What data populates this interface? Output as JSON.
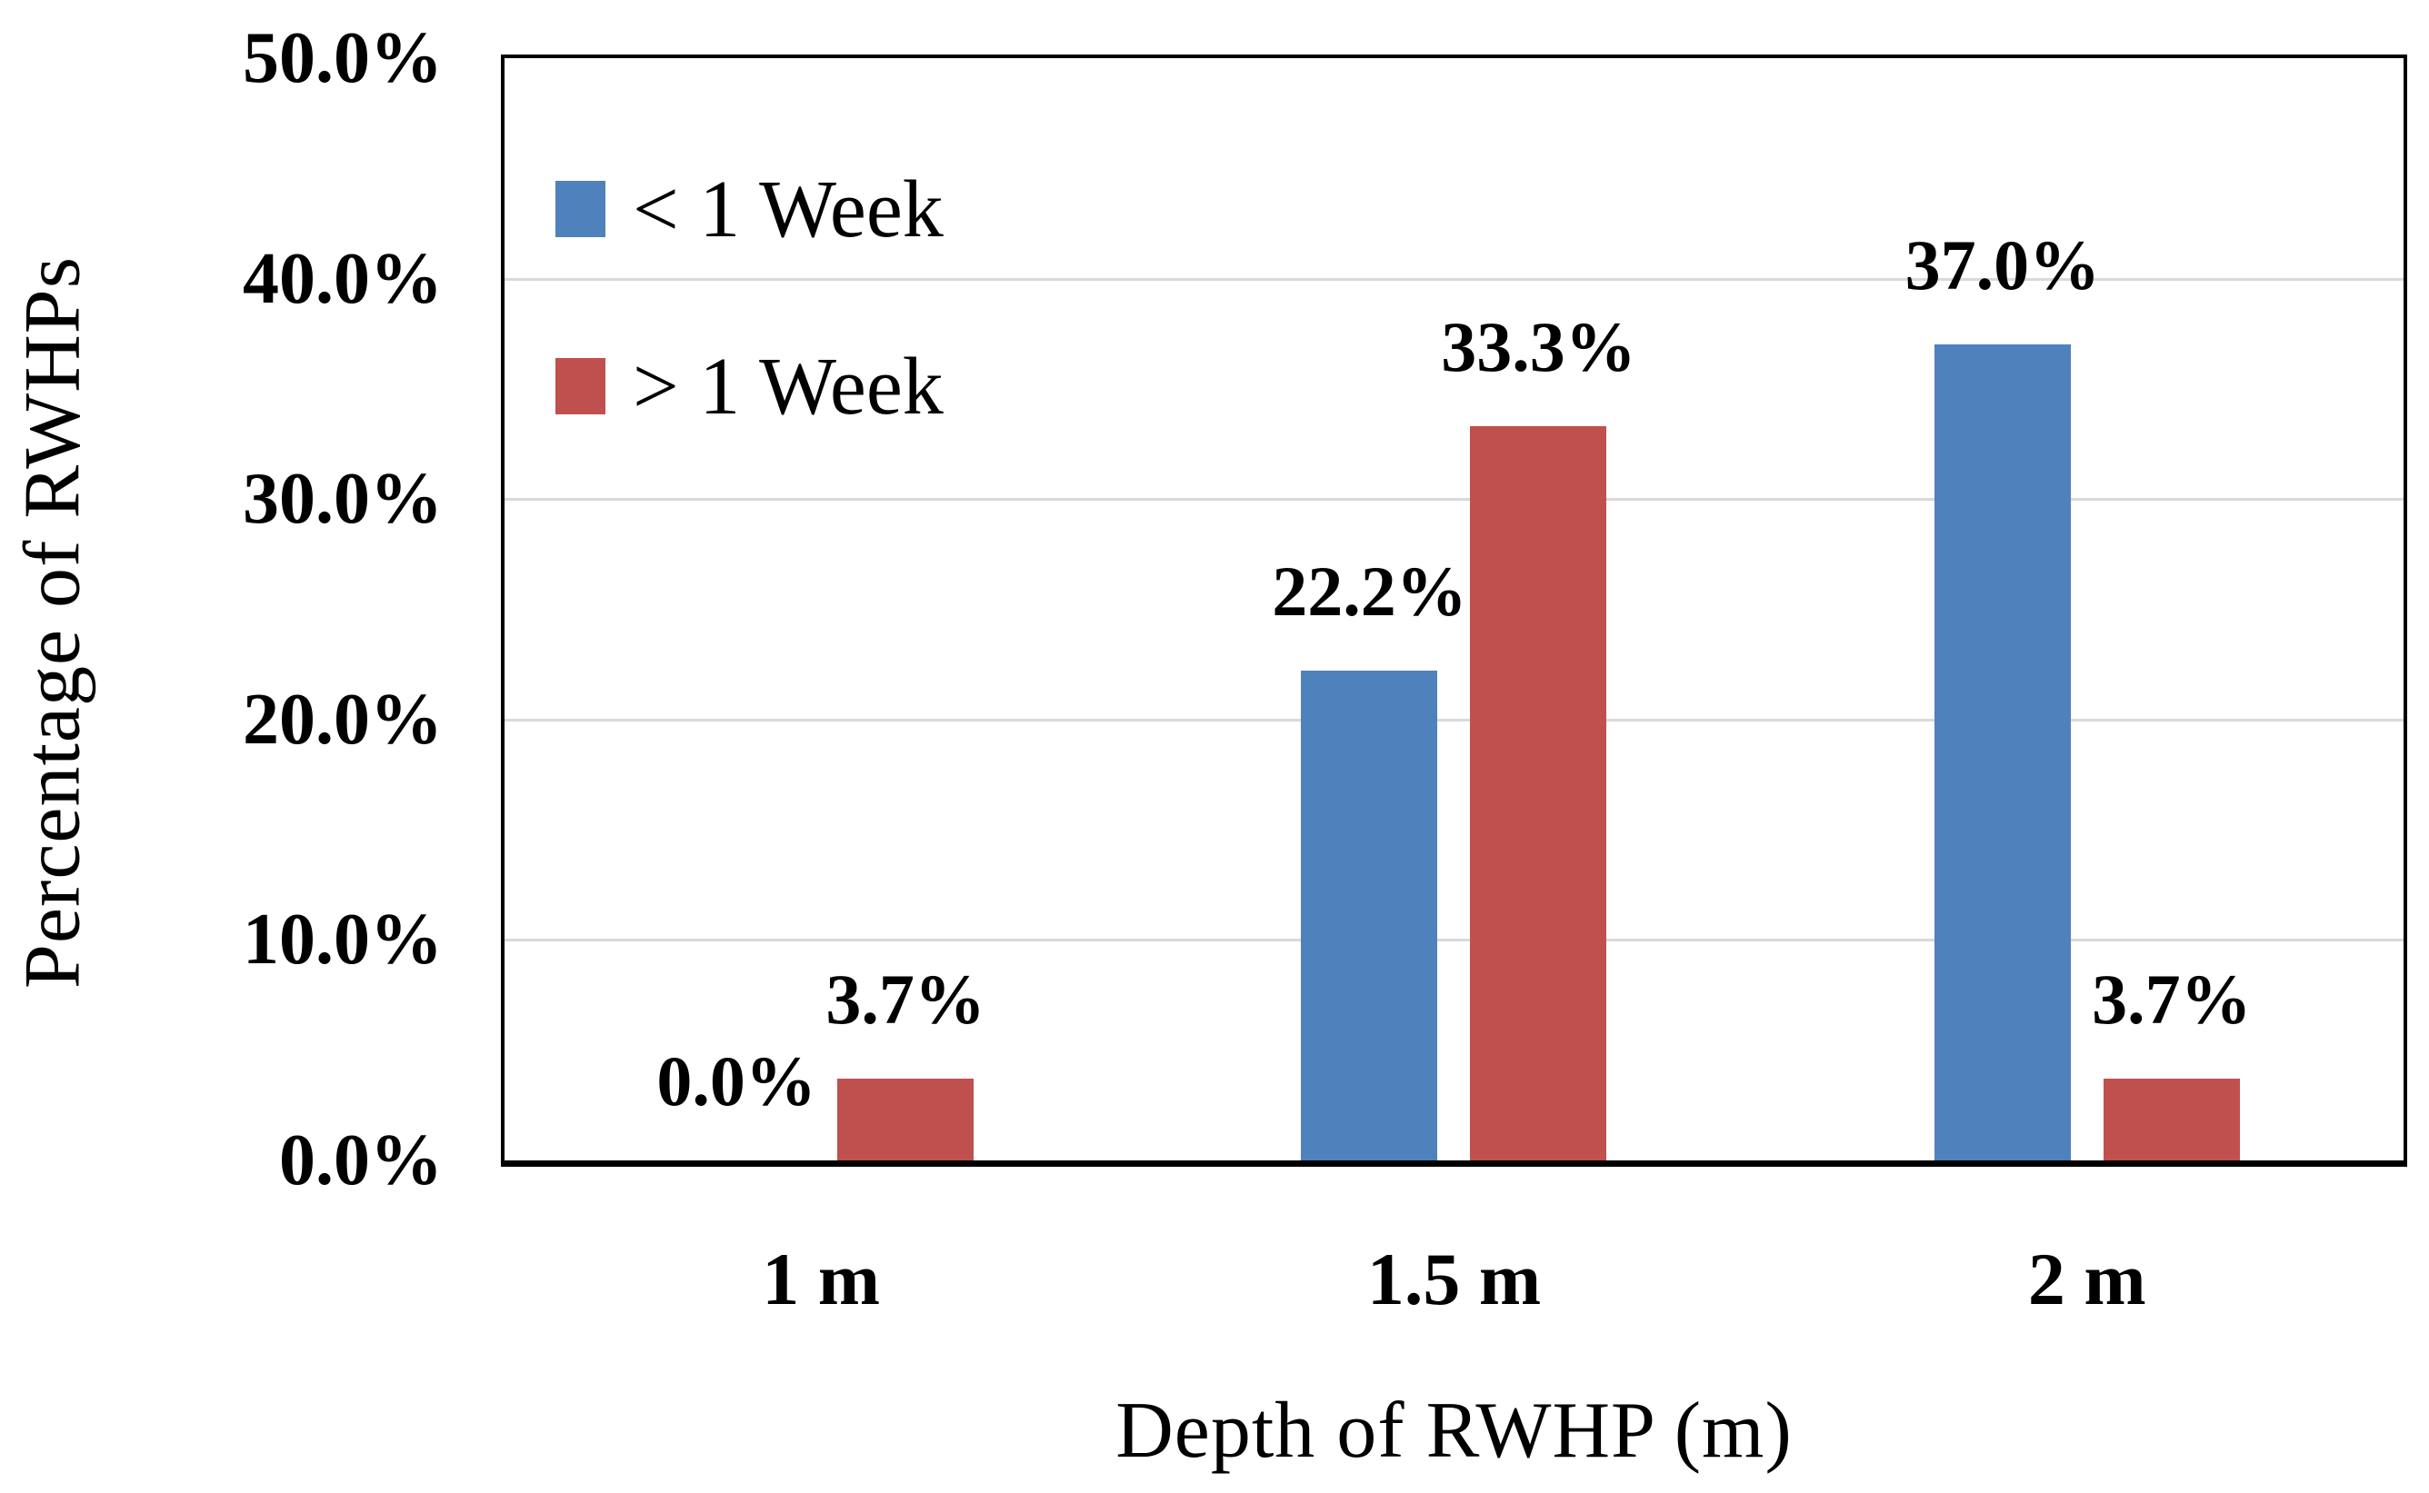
{
  "chart_data": {
    "type": "bar",
    "title": "",
    "xlabel": "Depth of RWHP (m)",
    "ylabel": "Percentage of RWHPs",
    "categories": [
      "1 m",
      "1.5 m",
      "2 m"
    ],
    "series": [
      {
        "name": "< 1 Week",
        "color": "#4F81BD",
        "values": [
          0.0,
          22.2,
          37.0
        ],
        "labels": [
          "0.0%",
          "22.2%",
          "37.0%"
        ]
      },
      {
        "name": "> 1 Week",
        "color": "#C0504D",
        "values": [
          3.7,
          33.3,
          3.7
        ],
        "labels": [
          "3.7%",
          "33.3%",
          "3.7%"
        ]
      }
    ],
    "ylim": [
      0,
      50
    ],
    "yticks": [
      "0.0%",
      "10.0%",
      "20.0%",
      "30.0%",
      "40.0%",
      "50.0%"
    ],
    "grid": true,
    "gridline_color": "#D9D9D9",
    "axis_color": "#000000",
    "background_color": "#FFFFFF",
    "legend_position": "top-left-inside"
  }
}
